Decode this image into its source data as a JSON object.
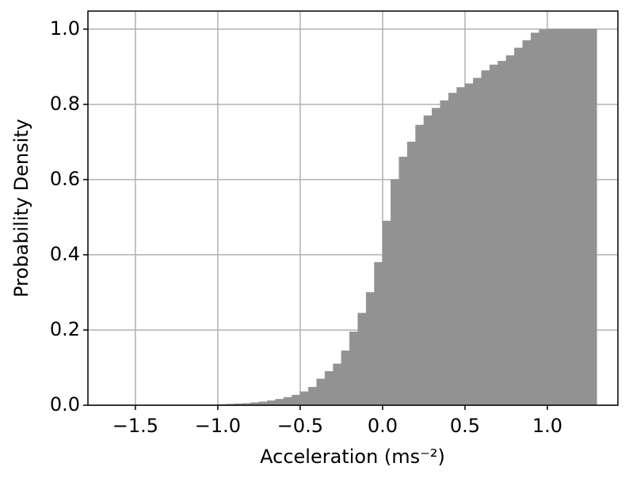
{
  "chart_data": {
    "type": "histogram",
    "cumulative": true,
    "x_label": "Acceleration (ms⁻²)",
    "y_label": "Probability Density",
    "color": "#929292",
    "grid": true,
    "bins": [
      -1.65,
      -1.6,
      -1.55,
      -1.5,
      -1.45,
      -1.4,
      -1.35,
      -1.3,
      -1.25,
      -1.2,
      -1.15,
      -1.1,
      -1.05,
      -1.0,
      -0.95,
      -0.9,
      -0.85,
      -0.8,
      -0.75,
      -0.7,
      -0.65,
      -0.6,
      -0.55,
      -0.5,
      -0.45,
      -0.4,
      -0.35,
      -0.3,
      -0.25,
      -0.2,
      -0.15,
      -0.1,
      -0.05,
      0.0,
      0.05,
      0.1,
      0.15,
      0.2,
      0.25,
      0.3,
      0.35,
      0.4,
      0.45,
      0.5,
      0.55,
      0.6,
      0.65,
      0.7,
      0.75,
      0.8,
      0.85,
      0.9,
      0.95,
      1.0,
      1.05,
      1.1,
      1.15,
      1.2,
      1.25,
      1.3
    ],
    "counts": [
      0,
      0,
      0,
      0,
      0,
      0,
      0,
      0,
      0,
      0,
      0,
      0,
      0.001,
      0.002,
      0.003,
      0.004,
      0.005,
      0.007,
      0.009,
      0.012,
      0.016,
      0.021,
      0.027,
      0.036,
      0.048,
      0.07,
      0.09,
      0.11,
      0.145,
      0.195,
      0.245,
      0.3,
      0.38,
      0.49,
      0.6,
      0.66,
      0.7,
      0.745,
      0.77,
      0.79,
      0.81,
      0.83,
      0.845,
      0.855,
      0.87,
      0.89,
      0.905,
      0.915,
      0.93,
      0.95,
      0.97,
      0.99,
      0.998,
      1,
      1,
      1,
      1,
      1,
      1
    ],
    "xlim": [
      -1.788,
      1.428
    ],
    "xticks": [
      {
        "value": -1.5,
        "label": "−1.5"
      },
      {
        "value": -1.0,
        "label": "−1.0"
      },
      {
        "value": -0.5,
        "label": "−0.5"
      },
      {
        "value": 0,
        "label": "0.0"
      },
      {
        "value": 0.5,
        "label": "0.5"
      },
      {
        "value": 1,
        "label": "1.0"
      }
    ],
    "ylim": [
      0,
      1.048
    ],
    "yticks": [
      {
        "value": 0,
        "label": "0.0"
      },
      {
        "value": 0.2,
        "label": "0.2"
      },
      {
        "value": 0.4,
        "label": "0.4"
      },
      {
        "value": 0.6,
        "label": "0.6"
      },
      {
        "value": 0.8,
        "label": "0.8"
      },
      {
        "value": 1,
        "label": "1.0"
      }
    ]
  }
}
